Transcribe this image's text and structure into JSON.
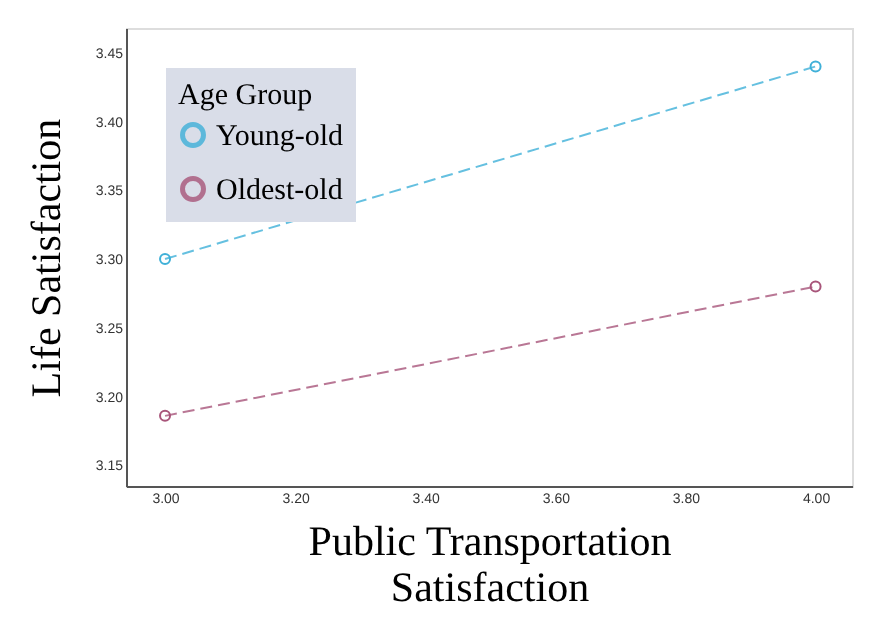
{
  "chart_data": {
    "type": "line",
    "xlabel": "Public Transportation\nSatisfaction",
    "ylabel": "Life Satisfaction",
    "legend_title": "Age Group",
    "x": [
      3.0,
      4.0
    ],
    "series": [
      {
        "name": "Young-old",
        "color": "#3fb0d8",
        "values": [
          3.3,
          3.44
        ]
      },
      {
        "name": "Oldest-old",
        "color": "#a8557a",
        "values": [
          3.186,
          3.28
        ]
      }
    ],
    "xlim": [
      2.94,
      4.056
    ],
    "ylim": [
      3.135,
      3.468
    ],
    "xticks": [
      {
        "value": 3.0,
        "label": "3.00"
      },
      {
        "value": 3.2,
        "label": "3.20"
      },
      {
        "value": 3.4,
        "label": "3.40"
      },
      {
        "value": 3.6,
        "label": "3.60"
      },
      {
        "value": 3.8,
        "label": "3.80"
      },
      {
        "value": 4.0,
        "label": "4.00"
      }
    ],
    "yticks": [
      {
        "value": 3.15,
        "label": "3.15"
      },
      {
        "value": 3.2,
        "label": "3.20"
      },
      {
        "value": 3.25,
        "label": "3.25"
      },
      {
        "value": 3.3,
        "label": "3.30"
      },
      {
        "value": 3.35,
        "label": "3.35"
      },
      {
        "value": 3.4,
        "label": "3.40"
      },
      {
        "value": 3.45,
        "label": "3.45"
      }
    ],
    "grid": false,
    "legend": "top left",
    "marker": "circle",
    "line_style": "dashed"
  }
}
